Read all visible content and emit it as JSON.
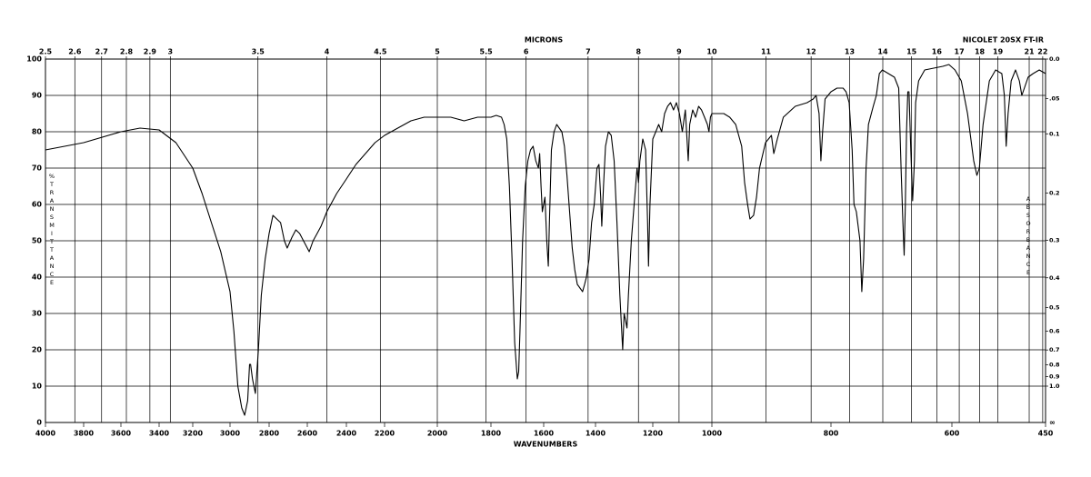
{
  "chart_data": {
    "type": "line",
    "title": "MICRONS",
    "annotation": "NICOLET 20SX FT-IR",
    "x_label": "WAVENUMBERS",
    "y_label": "%TRANSMITTANCE",
    "y2_label": "ABSORBANCE",
    "y2_bottom_label": "∞",
    "color": "#000000",
    "grid": true,
    "xlim": [
      4000,
      450
    ],
    "ylim": [
      0,
      100
    ],
    "xticks": [
      4000,
      3800,
      3600,
      3400,
      3200,
      3000,
      2800,
      2600,
      2400,
      2200,
      2000,
      1800,
      1600,
      1400,
      1200,
      1000,
      800,
      600,
      450
    ],
    "yticks": [
      0,
      10,
      20,
      30,
      40,
      50,
      60,
      70,
      80,
      90,
      100
    ],
    "x2ticks": [
      2.5,
      2.6,
      2.7,
      2.8,
      2.9,
      3,
      3.5,
      4,
      4.5,
      5,
      5.5,
      6,
      7,
      8,
      9,
      10,
      11,
      12,
      13,
      14,
      15,
      16,
      17,
      18,
      19,
      21,
      22
    ],
    "y2ticks": [
      {
        "value": 0,
        "label": "0.0"
      },
      {
        "value": 0.05,
        "label": ".05"
      },
      0.1,
      0.2,
      0.3,
      0.4,
      0.5,
      0.6,
      0.7,
      0.8,
      0.9,
      {
        "value": 1,
        "label": "1.0"
      }
    ],
    "x": [
      4000,
      3800,
      3600,
      3500,
      3400,
      3300,
      3200,
      3150,
      3100,
      3050,
      3000,
      2980,
      2960,
      2940,
      2925,
      2910,
      2900,
      2895,
      2885,
      2870,
      2855,
      2840,
      2820,
      2800,
      2780,
      2760,
      2740,
      2720,
      2705,
      2680,
      2660,
      2640,
      2620,
      2590,
      2570,
      2550,
      2530,
      2500,
      2450,
      2400,
      2350,
      2300,
      2250,
      2200,
      2150,
      2100,
      2050,
      2000,
      1950,
      1900,
      1850,
      1800,
      1780,
      1760,
      1750,
      1740,
      1730,
      1720,
      1710,
      1700,
      1695,
      1690,
      1680,
      1670,
      1660,
      1650,
      1640,
      1630,
      1620,
      1615,
      1610,
      1605,
      1595,
      1588,
      1582,
      1578,
      1570,
      1560,
      1550,
      1540,
      1530,
      1520,
      1510,
      1500,
      1490,
      1480,
      1470,
      1460,
      1450,
      1442,
      1435,
      1425,
      1415,
      1405,
      1395,
      1388,
      1382,
      1378,
      1372,
      1365,
      1355,
      1345,
      1335,
      1325,
      1315,
      1305,
      1300,
      1295,
      1290,
      1285,
      1275,
      1265,
      1255,
      1250,
      1245,
      1235,
      1225,
      1218,
      1215,
      1210,
      1200,
      1190,
      1180,
      1170,
      1160,
      1150,
      1140,
      1130,
      1120,
      1110,
      1100,
      1090,
      1080,
      1075,
      1065,
      1055,
      1045,
      1035,
      1025,
      1015,
      1010,
      1005,
      1000,
      980,
      970,
      960,
      950,
      945,
      940,
      936,
      930,
      925,
      920,
      910,
      900,
      896,
      890,
      880,
      860,
      840,
      830,
      825,
      820,
      817,
      814,
      810,
      800,
      790,
      780,
      775,
      770,
      765,
      762,
      758,
      752,
      749,
      746,
      742,
      738,
      730,
      725,
      720,
      715,
      705,
      695,
      688,
      684,
      681,
      679,
      677,
      675,
      673,
      671,
      668,
      665,
      662,
      660,
      655,
      645,
      630,
      615,
      605,
      595,
      585,
      575,
      565,
      560,
      556,
      550,
      540,
      530,
      520,
      516,
      513,
      510,
      505,
      498,
      492,
      488,
      484,
      478,
      470,
      460,
      450
    ],
    "values": [
      75,
      77,
      80,
      81,
      80.5,
      77,
      70,
      63,
      55,
      47,
      36,
      25,
      10,
      4,
      2,
      6,
      16,
      16,
      12,
      8,
      20,
      35,
      45,
      52,
      57,
      56,
      55,
      50,
      48,
      51,
      53,
      52,
      50,
      47,
      50,
      52,
      54,
      58,
      63,
      67,
      71,
      74,
      77,
      79,
      81,
      83,
      84,
      84,
      84,
      83,
      84,
      84,
      84.5,
      84,
      82,
      78,
      65,
      45,
      22,
      12,
      14,
      25,
      50,
      65,
      72,
      75,
      76,
      72,
      70,
      74,
      65,
      58,
      62,
      50,
      43,
      55,
      75,
      80,
      82,
      81,
      80,
      76,
      68,
      58,
      48,
      42,
      38,
      37,
      36,
      38,
      40,
      45,
      55,
      60,
      70,
      71,
      62,
      54,
      65,
      76,
      80,
      79,
      72,
      55,
      35,
      20,
      30,
      28,
      26,
      35,
      50,
      60,
      70,
      66,
      72,
      78,
      75,
      55,
      43,
      60,
      78,
      80,
      82,
      80,
      85,
      87,
      88,
      86,
      88,
      85,
      80,
      86,
      72,
      82,
      86,
      84,
      87,
      86,
      84,
      82,
      80,
      84,
      85,
      85,
      84,
      82,
      76,
      66,
      60,
      56,
      57,
      62,
      70,
      77,
      79,
      74,
      78,
      84,
      87,
      88,
      89,
      90,
      85,
      72,
      80,
      89,
      91,
      92,
      92,
      91,
      88,
      75,
      60,
      58,
      50,
      36,
      45,
      70,
      82,
      87,
      90,
      96,
      97,
      96,
      95,
      92,
      70,
      55,
      46,
      60,
      80,
      91,
      91,
      75,
      61,
      72,
      88,
      94,
      97,
      97.5,
      98,
      98.5,
      97,
      94,
      85,
      72,
      68,
      70,
      82,
      94,
      97,
      96,
      90,
      76,
      85,
      94,
      97,
      94,
      90,
      92,
      95,
      96,
      97,
      96
    ]
  }
}
